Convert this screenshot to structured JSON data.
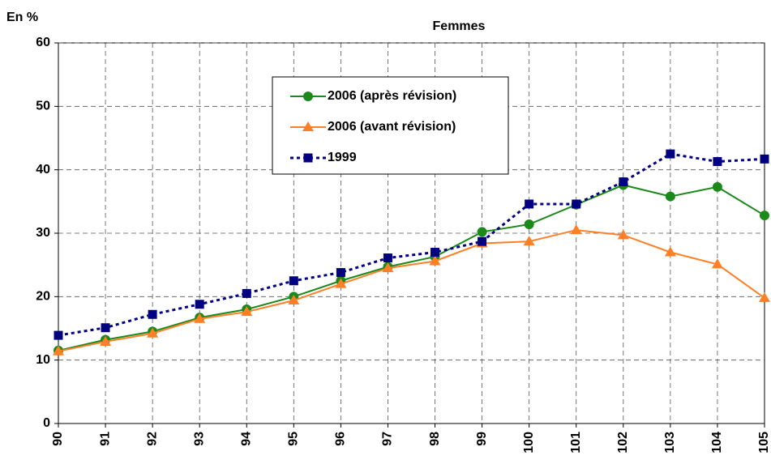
{
  "chart_data": {
    "type": "line",
    "title": "Femmes",
    "y_label": "En %",
    "categories": [
      "90",
      "91",
      "92",
      "93",
      "94",
      "95",
      "96",
      "97",
      "98",
      "99",
      "100",
      "101",
      "102",
      "103",
      "104",
      "105"
    ],
    "series": [
      {
        "name": "2006 (après révision)",
        "color": "#1b8a1b",
        "marker": "circle",
        "dash": "solid",
        "values": [
          11.5,
          13.2,
          14.5,
          16.7,
          18.0,
          20.0,
          22.5,
          24.7,
          26.3,
          30.2,
          31.4,
          34.5,
          37.6,
          35.8,
          37.3,
          32.8
        ]
      },
      {
        "name": "2006 (avant révision)",
        "color": "#ff7f27",
        "marker": "triangle",
        "dash": "solid",
        "values": [
          11.4,
          12.9,
          14.2,
          16.5,
          17.6,
          19.4,
          22.0,
          24.5,
          25.6,
          28.4,
          28.7,
          30.5,
          29.7,
          27.0,
          25.1,
          19.8
        ]
      },
      {
        "name": "1999",
        "color": "#000080",
        "marker": "square",
        "dash": "dotted",
        "values": [
          13.9,
          15.1,
          17.2,
          18.8,
          20.5,
          22.5,
          23.8,
          26.1,
          27.0,
          28.7,
          34.6,
          34.6,
          38.1,
          42.5,
          41.3,
          41.7
        ]
      }
    ],
    "ylim": [
      0,
      60
    ],
    "yticks": [
      0,
      10,
      20,
      30,
      40,
      50,
      60
    ],
    "grid": true
  }
}
